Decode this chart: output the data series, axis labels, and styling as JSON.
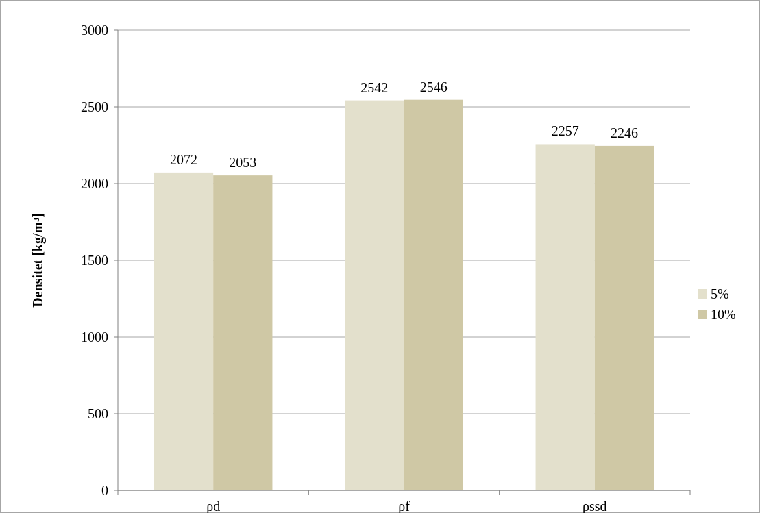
{
  "chart_data": {
    "type": "bar",
    "ylabel": "Densitet [kg/m³]",
    "categories": [
      "ρd",
      "ρf",
      "ρssd"
    ],
    "series": [
      {
        "name": "5%",
        "color": "#e3e0cc",
        "values": [
          2072,
          2542,
          2257
        ]
      },
      {
        "name": "10%",
        "color": "#cfc8a5",
        "values": [
          2053,
          2546,
          2246
        ]
      }
    ],
    "ylim": [
      0,
      3000
    ],
    "yticks": [
      0,
      500,
      1000,
      1500,
      2000,
      2500,
      3000
    ],
    "grid": "y",
    "legend": "right",
    "data_labels": true
  }
}
